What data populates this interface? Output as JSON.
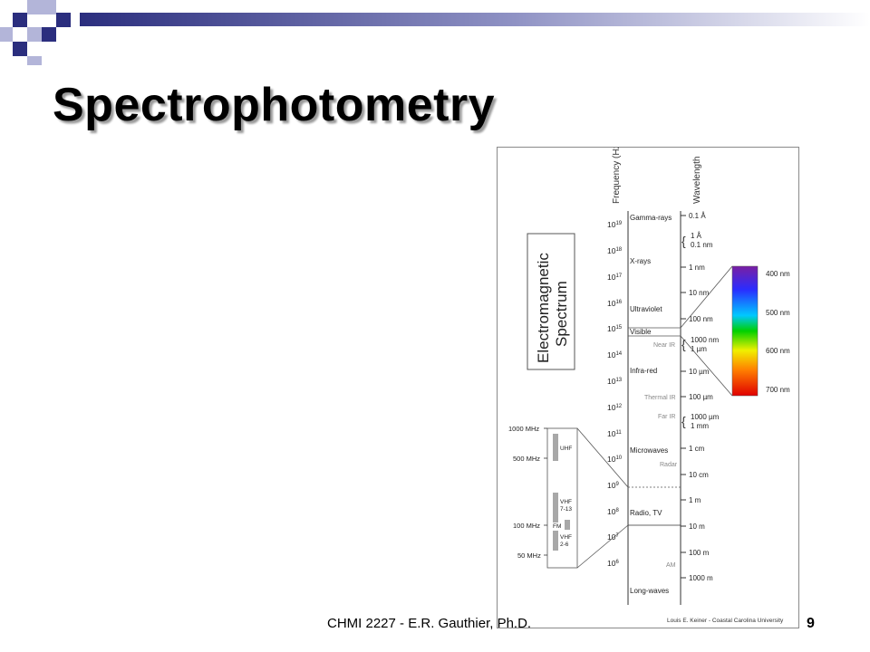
{
  "slide": {
    "title": "Spectrophotometry",
    "footer": "CHMI 2227 - E.R. Gauthier, Ph.D.",
    "page_number": "9",
    "colors": {
      "accent_dark": "#2b2e7e",
      "accent_light": "#b3b5d9"
    }
  },
  "figure": {
    "box_title_line1": "Electromagnetic",
    "box_title_line2": "Spectrum",
    "frequency_axis_label": "Frequency (Hz)",
    "wavelength_axis_label": "Wavelength",
    "credit": "Louis E. Keiner - Coastal Carolina University",
    "frequency_ticks": [
      {
        "base": "10",
        "exp": "19"
      },
      {
        "base": "10",
        "exp": "18"
      },
      {
        "base": "10",
        "exp": "17"
      },
      {
        "base": "10",
        "exp": "16"
      },
      {
        "base": "10",
        "exp": "15"
      },
      {
        "base": "10",
        "exp": "14"
      },
      {
        "base": "10",
        "exp": "13"
      },
      {
        "base": "10",
        "exp": "12"
      },
      {
        "base": "10",
        "exp": "11"
      },
      {
        "base": "10",
        "exp": "10"
      },
      {
        "base": "10",
        "exp": "9"
      },
      {
        "base": "10",
        "exp": "8"
      },
      {
        "base": "10",
        "exp": "7"
      },
      {
        "base": "10",
        "exp": "6"
      }
    ],
    "regions": [
      {
        "label": "Gamma-rays"
      },
      {
        "label": "X-rays"
      },
      {
        "label": "Ultraviolet"
      },
      {
        "label": "Visible"
      },
      {
        "label": "Near IR"
      },
      {
        "label": "Infra-red"
      },
      {
        "label": "Thermal IR"
      },
      {
        "label": "Far IR"
      },
      {
        "label": "Microwaves"
      },
      {
        "label": "Radar"
      },
      {
        "label": "Radio, TV"
      },
      {
        "label": "AM"
      },
      {
        "label": "Long-waves"
      }
    ],
    "wavelength_labels": [
      "0.1 Å",
      "1 Å",
      "0.1 nm",
      "1 nm",
      "10 nm",
      "100 nm",
      "1000 nm",
      "1 µm",
      "10 µm",
      "100 µm",
      "1000 µm",
      "1 mm",
      "1 cm",
      "10 cm",
      "1 m",
      "10 m",
      "100 m",
      "1000 m"
    ],
    "visible_labels": [
      "400 nm",
      "500 nm",
      "600 nm",
      "700 nm"
    ],
    "radio_freq_labels": [
      "1000 MHz",
      "500 MHz",
      "100 MHz",
      "50 MHz"
    ],
    "radio_bands": [
      "UHF",
      "VHF",
      "7-13",
      "FM",
      "VHF",
      "2-6"
    ]
  }
}
